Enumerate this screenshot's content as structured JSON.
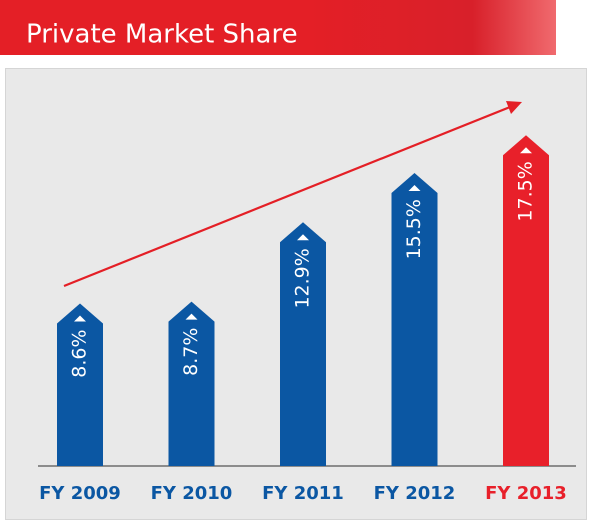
{
  "chart_data": {
    "type": "bar",
    "title": "Private Market Share",
    "categories": [
      "FY 2009",
      "FY 2010",
      "FY 2011",
      "FY 2012",
      "FY 2013"
    ],
    "values": [
      8.6,
      8.7,
      12.9,
      15.5,
      17.5
    ],
    "value_labels": [
      "8.6%",
      "8.7%",
      "12.9%",
      "15.5%",
      "17.5%"
    ],
    "colors": [
      "#0b57a3",
      "#0b57a3",
      "#0b57a3",
      "#0b57a3",
      "#e8202a"
    ]
  }
}
